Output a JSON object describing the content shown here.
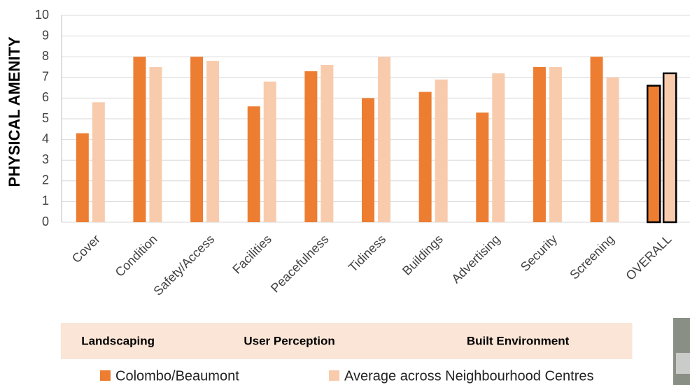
{
  "chart_data": {
    "type": "bar",
    "y_label": "PHYSICAL AMENITY",
    "categories": [
      "Cover",
      "Condition",
      "Safety/Access",
      "Facilities",
      "Peacefulness",
      "Tidiness",
      "Buildings",
      "Advertising",
      "Security",
      "Screening",
      "OVERALL"
    ],
    "series": [
      {
        "name": "Colombo/Beaumont",
        "color": "#ed7d31",
        "values": [
          4.3,
          8,
          8,
          5.6,
          7.3,
          6,
          6.3,
          5.3,
          7.5,
          8,
          6.6
        ]
      },
      {
        "name": "Average across Neighbourhood Centres",
        "color": "#f8cbad",
        "values": [
          5.8,
          7.5,
          7.8,
          6.8,
          7.6,
          8,
          6.9,
          7.2,
          7.5,
          7,
          7.2
        ]
      }
    ],
    "outlined_categories": [
      10
    ],
    "groups": [
      {
        "label": "Landscaping",
        "categories": [
          0,
          1
        ]
      },
      {
        "label": "User Perception",
        "categories": [
          2,
          5
        ]
      },
      {
        "label": "Built Environment",
        "categories": [
          6,
          9
        ]
      }
    ],
    "group_color": "#fbe5d6",
    "ylim": [
      0,
      10
    ],
    "yticks": [
      0,
      1,
      2,
      3,
      4,
      5,
      6,
      7,
      8,
      9,
      10
    ],
    "grid": true
  }
}
